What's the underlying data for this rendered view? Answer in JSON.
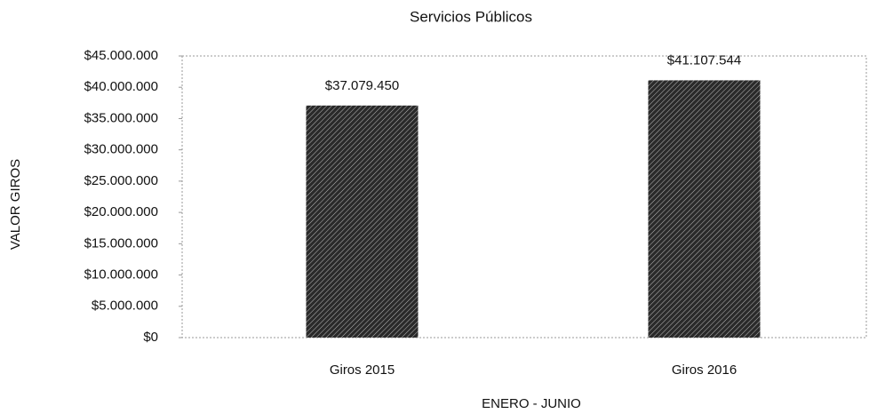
{
  "chart_data": {
    "type": "bar",
    "title": "Servicios Públicos",
    "x_label": "ENERO -  JUNIO",
    "y_label": "VALOR GIROS",
    "categories": [
      "Giros 2015",
      "Giros 2016"
    ],
    "values": [
      37079450,
      41107544
    ],
    "value_labels": [
      "$37.079.450",
      "$41.107.544"
    ],
    "color": "#2a2a2a",
    "ylim": [
      0,
      45000000
    ],
    "yticks": [
      {
        "value": 0,
        "label": "$0"
      },
      {
        "value": 5000000,
        "label": "$5.000.000"
      },
      {
        "value": 10000000,
        "label": "$10.000.000"
      },
      {
        "value": 15000000,
        "label": "$15.000.000"
      },
      {
        "value": 20000000,
        "label": "$20.000.000"
      },
      {
        "value": 25000000,
        "label": "$25.000.000"
      },
      {
        "value": 30000000,
        "label": "$30.000.000"
      },
      {
        "value": 35000000,
        "label": "$35.000.000"
      },
      {
        "value": 40000000,
        "label": "$40.000.000"
      },
      {
        "value": 45000000,
        "label": "$45.000.000"
      }
    ],
    "grid": false
  }
}
